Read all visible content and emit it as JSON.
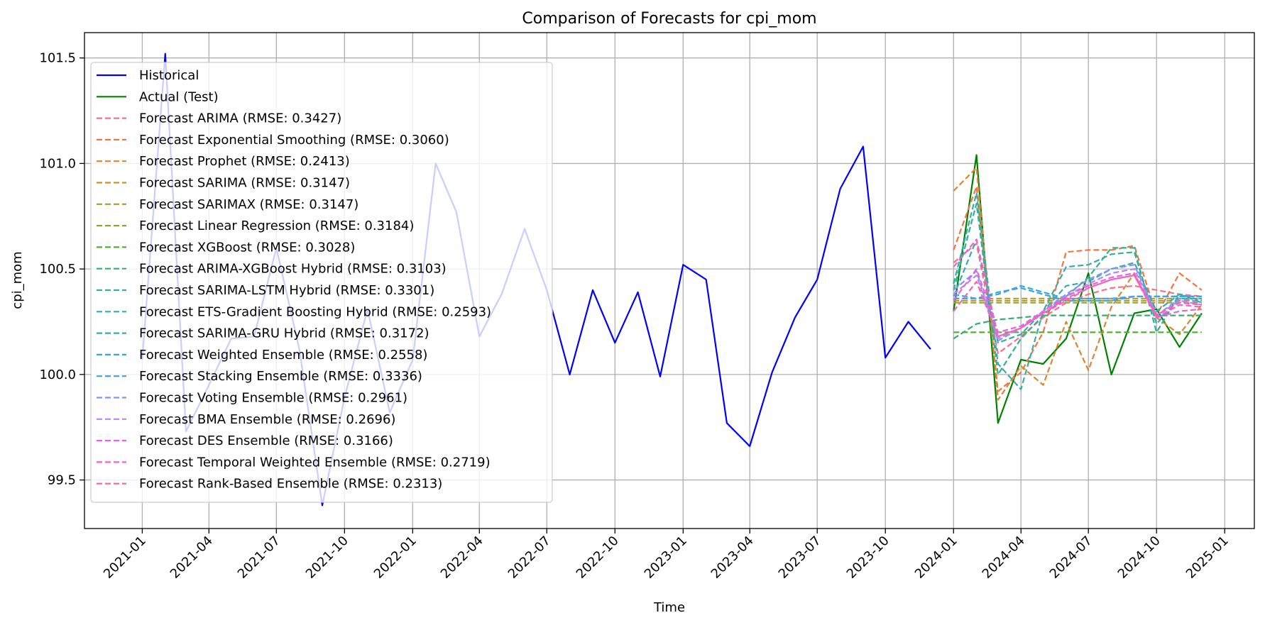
{
  "chart_data": {
    "type": "line",
    "title": "Comparison of Forecasts for cpi_mom",
    "xlabel": "Time",
    "ylabel": "cpi_mom",
    "x_type": "date",
    "xlim": [
      "2020-10-15",
      "2025-02-10"
    ],
    "ylim": [
      99.27,
      101.62
    ],
    "x_ticks": [
      "2021-01",
      "2021-04",
      "2021-07",
      "2021-10",
      "2022-01",
      "2022-04",
      "2022-07",
      "2022-10",
      "2023-01",
      "2023-04",
      "2023-07",
      "2023-10",
      "2024-01",
      "2024-04",
      "2024-07",
      "2024-10",
      "2025-01"
    ],
    "y_ticks": [
      99.5,
      100.0,
      100.5,
      101.0,
      101.5
    ],
    "y_tick_labels": [
      "99.5",
      "100.0",
      "100.5",
      "101.0",
      "101.5"
    ],
    "grid": true,
    "legend_placement": "upper-left",
    "historical_x": [
      "2021-01",
      "2021-02",
      "2021-03",
      "2021-04",
      "2021-05",
      "2021-06",
      "2021-07",
      "2021-08",
      "2021-09",
      "2021-10",
      "2021-11",
      "2021-12",
      "2022-01",
      "2022-02",
      "2022-03",
      "2022-04",
      "2022-05",
      "2022-06",
      "2022-07",
      "2022-08",
      "2022-09",
      "2022-10",
      "2022-11",
      "2022-12",
      "2023-01",
      "2023-02",
      "2023-03",
      "2023-04",
      "2023-05",
      "2023-06",
      "2023-07",
      "2023-08",
      "2023-09",
      "2023-10",
      "2023-11",
      "2023-12"
    ],
    "forecast_x": [
      "2024-01",
      "2024-02",
      "2024-03",
      "2024-04",
      "2024-05",
      "2024-06",
      "2024-07",
      "2024-08",
      "2024-09",
      "2024-10",
      "2024-11",
      "2024-12"
    ],
    "series": [
      {
        "name": "Historical",
        "color": "#0000ff",
        "style": "solid",
        "x_ref": "historical_x",
        "values": [
          100.07,
          101.52,
          99.73,
          99.95,
          100.17,
          100.18,
          100.6,
          100.12,
          99.38,
          99.89,
          100.31,
          99.82,
          100.07,
          101.0,
          100.77,
          100.18,
          100.38,
          100.69,
          100.4,
          100.0,
          100.4,
          100.15,
          100.39,
          99.99,
          100.52,
          100.45,
          99.77,
          99.66,
          100.01,
          100.27,
          100.45,
          100.88,
          101.08,
          100.08,
          100.25,
          100.12
        ]
      },
      {
        "name": "Actual (Test)",
        "color": "#008000",
        "style": "solid",
        "x_ref": "forecast_x",
        "values": [
          100.3,
          101.04,
          99.77,
          100.07,
          100.05,
          100.17,
          100.48,
          100.0,
          100.29,
          100.31,
          100.13,
          100.29
        ]
      },
      {
        "name": "Forecast ARIMA (RMSE: 0.3427)",
        "color": "#f77189",
        "style": "dashed",
        "x_ref": "forecast_x",
        "values": [
          100.53,
          100.62,
          100.1,
          100.18,
          100.27,
          100.34,
          100.38,
          100.41,
          100.42,
          100.4,
          100.38,
          100.37
        ]
      },
      {
        "name": "Forecast Exponential Smoothing (RMSE: 0.3060)",
        "color": "#f2753f",
        "style": "dashed",
        "x_ref": "forecast_x",
        "values": [
          100.59,
          100.89,
          99.92,
          100.01,
          100.2,
          100.58,
          100.59,
          100.59,
          100.61,
          100.28,
          100.48,
          100.4
        ]
      },
      {
        "name": "Forecast Prophet (RMSE: 0.2413)",
        "color": "#db8632",
        "style": "dashed",
        "x_ref": "forecast_x",
        "values": [
          100.87,
          100.98,
          99.88,
          100.04,
          99.95,
          100.25,
          100.02,
          100.32,
          100.48,
          100.27,
          100.19,
          100.33
        ]
      },
      {
        "name": "Forecast SARIMA (RMSE: 0.3147)",
        "color": "#c39532",
        "style": "dashed",
        "x_ref": "forecast_x",
        "values": [
          100.36,
          100.36,
          100.36,
          100.36,
          100.36,
          100.36,
          100.36,
          100.36,
          100.36,
          100.36,
          100.36,
          100.36
        ]
      },
      {
        "name": "Forecast SARIMAX (RMSE: 0.3147)",
        "color": "#ad9c31",
        "style": "dashed",
        "x_ref": "forecast_x",
        "values": [
          100.35,
          100.35,
          100.35,
          100.35,
          100.35,
          100.35,
          100.35,
          100.35,
          100.35,
          100.35,
          100.35,
          100.35
        ]
      },
      {
        "name": "Forecast Linear Regression (RMSE: 0.3184)",
        "color": "#8ea531",
        "style": "dashed",
        "x_ref": "forecast_x",
        "values": [
          100.34,
          100.34,
          100.34,
          100.34,
          100.34,
          100.34,
          100.34,
          100.34,
          100.34,
          100.34,
          100.34,
          100.34
        ]
      },
      {
        "name": "Forecast XGBoost (RMSE: 0.3028)",
        "color": "#50b131",
        "style": "dashed",
        "x_ref": "forecast_x",
        "values": [
          100.2,
          100.2,
          100.2,
          100.2,
          100.2,
          100.2,
          100.2,
          100.2,
          100.2,
          100.2,
          100.2,
          100.2
        ]
      },
      {
        "name": "Forecast ARIMA-XGBoost Hybrid (RMSE: 0.3103)",
        "color": "#33b16f",
        "style": "dashed",
        "x_ref": "forecast_x",
        "values": [
          100.17,
          100.24,
          100.26,
          100.27,
          100.28,
          100.28,
          100.28,
          100.28,
          100.28,
          100.28,
          100.28,
          100.28
        ]
      },
      {
        "name": "Forecast SARIMA-LSTM Hybrid (RMSE: 0.3301)",
        "color": "#35ae93",
        "style": "dashed",
        "x_ref": "forecast_x",
        "values": [
          100.4,
          100.81,
          100.0,
          100.17,
          100.28,
          100.37,
          100.46,
          100.6,
          100.6,
          100.2,
          100.38,
          100.34
        ]
      },
      {
        "name": "Forecast ETS-Gradient Boosting Hybrid (RMSE: 0.2593)",
        "color": "#36ada4",
        "style": "dashed",
        "x_ref": "forecast_x",
        "values": [
          100.43,
          100.86,
          100.05,
          99.93,
          100.3,
          100.51,
          100.52,
          100.57,
          100.58,
          100.24,
          100.36,
          100.36
        ]
      },
      {
        "name": "Forecast SARIMA-GRU Hybrid (RMSE: 0.3172)",
        "color": "#38aab6",
        "style": "dashed",
        "x_ref": "forecast_x",
        "values": [
          100.37,
          100.64,
          100.15,
          100.19,
          100.3,
          100.42,
          100.44,
          100.5,
          100.53,
          100.3,
          100.38,
          100.35
        ]
      },
      {
        "name": "Forecast Weighted Ensemble (RMSE: 0.2558)",
        "color": "#39a7d0",
        "style": "dashed",
        "x_ref": "forecast_x",
        "values": [
          100.36,
          100.36,
          100.39,
          100.41,
          100.38,
          100.35,
          100.35,
          100.35,
          100.37,
          100.37,
          100.37,
          100.37
        ]
      },
      {
        "name": "Forecast Stacking Ensemble (RMSE: 0.3336)",
        "color": "#3ba3ec",
        "style": "dashed",
        "x_ref": "forecast_x",
        "values": [
          100.38,
          100.36,
          100.38,
          100.42,
          100.39,
          100.36,
          100.36,
          100.36,
          100.37,
          100.37,
          100.37,
          100.37
        ]
      },
      {
        "name": "Forecast Voting Ensemble (RMSE: 0.2961)",
        "color": "#8197f4",
        "style": "dashed",
        "x_ref": "forecast_x",
        "values": [
          100.4,
          100.49,
          100.16,
          100.22,
          100.3,
          100.38,
          100.45,
          100.5,
          100.52,
          100.28,
          100.36,
          100.34
        ]
      },
      {
        "name": "Forecast BMA Ensemble (RMSE: 0.2696)",
        "color": "#bb83f4",
        "style": "dashed",
        "x_ref": "forecast_x",
        "values": [
          100.38,
          100.47,
          100.17,
          100.22,
          100.3,
          100.37,
          100.43,
          100.48,
          100.5,
          100.28,
          100.35,
          100.33
        ]
      },
      {
        "name": "Forecast DES Ensemble (RMSE: 0.3166)",
        "color": "#e363e9",
        "style": "dashed",
        "x_ref": "forecast_x",
        "values": [
          100.35,
          100.5,
          100.2,
          100.23,
          100.3,
          100.37,
          100.42,
          100.46,
          100.48,
          100.27,
          100.3,
          100.31
        ]
      },
      {
        "name": "Forecast Temporal Weighted Ensemble (RMSE: 0.2719)",
        "color": "#f45fd2",
        "style": "dashed",
        "x_ref": "forecast_x",
        "values": [
          100.51,
          100.64,
          100.18,
          100.22,
          100.29,
          100.35,
          100.41,
          100.45,
          100.47,
          100.27,
          100.33,
          100.32
        ]
      },
      {
        "name": "Forecast Rank-Based Ensemble (RMSE: 0.2313)",
        "color": "#f564ae",
        "style": "dashed",
        "x_ref": "forecast_x",
        "values": [
          100.3,
          100.44,
          100.18,
          100.22,
          100.29,
          100.36,
          100.41,
          100.45,
          100.47,
          100.28,
          100.34,
          100.33
        ]
      }
    ]
  }
}
